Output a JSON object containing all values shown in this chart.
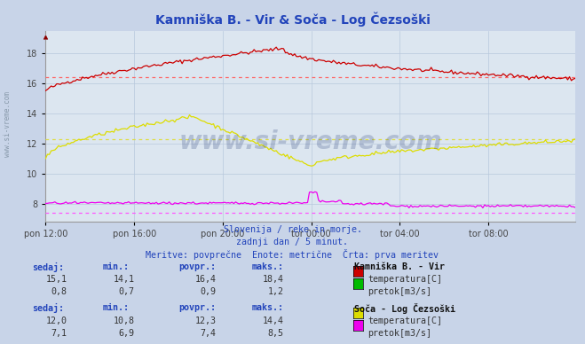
{
  "title": "Kamniška B. - Vir & Soča - Log Čezsoški",
  "subtitle1": "Slovenija / reke in morje.",
  "subtitle2": "zadnji dan / 5 minut.",
  "subtitle3": "Meritve: povprečne  Enote: metrične  Črta: prva meritev",
  "bg_color": "#c8d4e8",
  "plot_bg_color": "#dce6f0",
  "grid_color": "#b8c8dc",
  "title_color": "#2244bb",
  "subtitle_color": "#2244bb",
  "text_color": "#2244bb",
  "data_color": "#333333",
  "x_tick_labels": [
    "pon 12:00",
    "pon 16:00",
    "pon 20:00",
    "tor 00:00",
    "tor 04:00",
    "tor 08:00"
  ],
  "y_ticks": [
    8,
    10,
    12,
    14,
    16,
    18
  ],
  "ylim_low": 6.8,
  "ylim_high": 19.5,
  "n_points": 288,
  "watermark": "www.si-vreme.com",
  "station1_name": "Kamniška B. - Vir",
  "station2_name": "Soča - Log Čezsoški",
  "stat1_temp_color": "#cc0000",
  "stat1_flow_color": "#00bb00",
  "stat2_temp_color": "#dddd00",
  "stat2_flow_color": "#ee00ee",
  "avg_color_red": "#ff6666",
  "avg_color_yellow": "#dddd44",
  "avg_color_magenta": "#ff55ff",
  "stat1_sedaj": 15.1,
  "stat1_min": 14.1,
  "stat1_povpr": 16.4,
  "stat1_maks": 18.4,
  "stat1_flow_sedaj": 0.8,
  "stat1_flow_min": 0.7,
  "stat1_flow_povpr": 0.9,
  "stat1_flow_maks": 1.2,
  "stat2_sedaj": 12.0,
  "stat2_min": 10.8,
  "stat2_povpr": 12.3,
  "stat2_maks": 14.4,
  "stat2_flow_sedaj": 7.1,
  "stat2_flow_min": 6.9,
  "stat2_flow_povpr": 7.4,
  "stat2_flow_maks": 8.5
}
